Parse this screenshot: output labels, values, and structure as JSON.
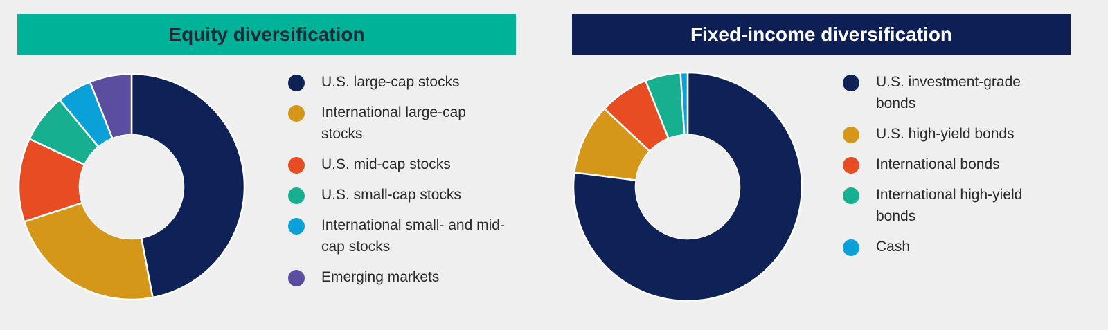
{
  "chart_data": [
    {
      "type": "donut",
      "title": "Equity diversification",
      "title_background": "#00b398",
      "title_color": "#1c2b39",
      "categories": [
        "U.S. large-cap stocks",
        "International large-cap stocks",
        "U.S. mid-cap stocks",
        "U.S. small-cap stocks",
        "International small- and mid-cap stocks",
        "Emerging markets"
      ],
      "values": [
        47,
        23,
        12,
        7,
        5,
        6
      ],
      "colors": [
        "#0f2257",
        "#d4971a",
        "#e84c22",
        "#16b090",
        "#0aa0d8",
        "#5b4ea0"
      ]
    },
    {
      "type": "donut",
      "title": "Fixed-income diversification",
      "title_background": "#0d1f54",
      "title_color": "#ffffff",
      "categories": [
        "U.S. investment-grade bonds",
        "U.S. high-yield bonds",
        "International bonds",
        "International high-yield bonds",
        "Cash"
      ],
      "values": [
        77,
        10,
        7,
        5,
        1
      ],
      "colors": [
        "#0f2257",
        "#d4971a",
        "#e84c22",
        "#16b090",
        "#0aa0d8"
      ]
    }
  ]
}
